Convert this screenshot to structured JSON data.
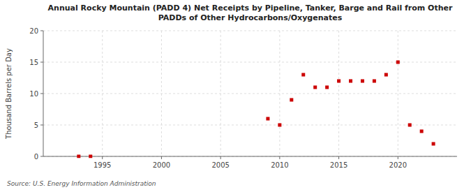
{
  "chart_data": {
    "type": "scatter",
    "title": "Annual Rocky Mountain (PADD 4) Net Receipts by Pipeline, Tanker, Barge and Rail from Other\nPADDs of Other Hydrocarbons/Oxygenates",
    "ylabel": "Thousand Barrels per Day",
    "source": "Source: U.S. Energy Information Administration",
    "x": [
      1993,
      1994,
      2009,
      2010,
      2011,
      2012,
      2013,
      2014,
      2015,
      2016,
      2017,
      2018,
      2019,
      2020,
      2021,
      2022,
      2023
    ],
    "values": [
      0,
      0,
      6,
      5,
      9,
      13,
      11,
      11,
      12,
      12,
      12,
      12,
      13,
      15,
      5,
      4,
      2
    ],
    "xlim": [
      1990,
      2025
    ],
    "ylim": [
      0,
      20
    ],
    "xticks": [
      1995,
      2000,
      2005,
      2010,
      2015,
      2020
    ],
    "yticks": [
      0,
      5,
      10,
      15,
      20
    ],
    "color": "#cc0000",
    "marker": "square",
    "grid": true
  }
}
